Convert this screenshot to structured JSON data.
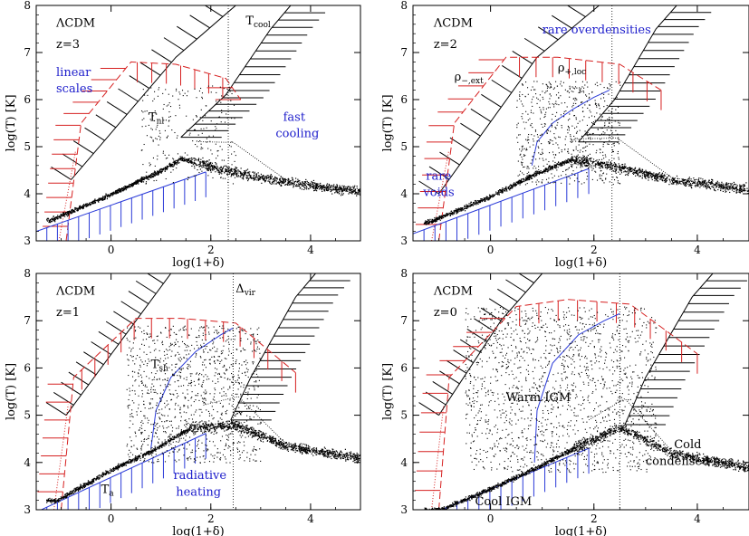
{
  "chart_data": [
    {
      "type": "scatter",
      "xlabel": "log(1+δ)",
      "ylabel": "log(T) [K]",
      "xlim": [
        -1.5,
        5
      ],
      "ylim": [
        3,
        8
      ],
      "xticks": [
        0,
        2,
        4
      ],
      "yticks": [
        3,
        4,
        5,
        6,
        7,
        8
      ],
      "grid": false,
      "annotations": [
        {
          "text": "ΛCDM",
          "x": -1.1,
          "y": 7.55,
          "color": "#000000"
        },
        {
          "text": "z=3",
          "x": -1.1,
          "y": 7.1,
          "color": "#000000"
        },
        {
          "text": "linear",
          "x": -1.1,
          "y": 6.5,
          "color": "#2020cc"
        },
        {
          "text": "scales",
          "x": -1.1,
          "y": 6.15,
          "color": "#2020cc"
        },
        {
          "text": "T_nl",
          "x": 0.75,
          "y": 5.55,
          "color": "#000000"
        },
        {
          "text": "T_cool",
          "x": 2.7,
          "y": 7.6,
          "color": "#000000"
        },
        {
          "text": "fast",
          "x": 3.45,
          "y": 5.55,
          "color": "#2020cc"
        },
        {
          "text": "cooling",
          "x": 3.3,
          "y": 5.2,
          "color": "#2020cc"
        }
      ],
      "vline": 2.35,
      "cloud_pts": [
        [
          -1.2,
          3.45
        ],
        [
          0.0,
          4.0
        ],
        [
          1.0,
          4.5
        ],
        [
          1.4,
          4.75
        ],
        [
          2.5,
          4.45
        ],
        [
          3.5,
          4.25
        ],
        [
          5.0,
          4.05
        ]
      ],
      "extra_scatter": {
        "x_range": [
          0.6,
          2.5
        ],
        "y_range": [
          4.2,
          6.3
        ]
      },
      "heating_line": null,
      "red_curve": [
        [
          -0.9,
          3.0
        ],
        [
          -0.6,
          5.5
        ],
        [
          0.4,
          6.8
        ],
        [
          1.3,
          6.75
        ],
        [
          2.3,
          6.45
        ],
        [
          2.6,
          6.0
        ]
      ],
      "black_upper": [
        [
          -0.8,
          4.3
        ],
        [
          1.3,
          6.9
        ],
        [
          2.5,
          8.0
        ]
      ],
      "black_lower": [
        [
          1.4,
          5.2
        ],
        [
          2.3,
          6.1
        ],
        [
          3.2,
          7.5
        ],
        [
          3.6,
          8.0
        ]
      ],
      "upper_blue": null
    },
    {
      "type": "scatter",
      "xlabel": "log(1+δ)",
      "ylabel": "log(T) [K]",
      "xlim": [
        -1.5,
        5
      ],
      "ylim": [
        3,
        8
      ],
      "xticks": [
        0,
        2,
        4
      ],
      "yticks": [
        3,
        4,
        5,
        6,
        7,
        8
      ],
      "grid": false,
      "annotations": [
        {
          "text": "ΛCDM",
          "x": -1.1,
          "y": 7.55,
          "color": "#000000"
        },
        {
          "text": "z=2",
          "x": -1.1,
          "y": 7.1,
          "color": "#000000"
        },
        {
          "text": "rare overdensities",
          "x": 1.0,
          "y": 7.4,
          "color": "#2020cc"
        },
        {
          "text": "ρ_−,ext",
          "x": -0.7,
          "y": 6.4,
          "color": "#000000"
        },
        {
          "text": "ρ_+,loc",
          "x": 1.3,
          "y": 6.6,
          "color": "#000000"
        },
        {
          "text": "rare",
          "x": -1.25,
          "y": 4.3,
          "color": "#2020cc"
        },
        {
          "text": "voids",
          "x": -1.3,
          "y": 3.95,
          "color": "#2020cc"
        }
      ],
      "vline": 2.35,
      "cloud_pts": [
        [
          -1.2,
          3.4
        ],
        [
          0.0,
          3.95
        ],
        [
          0.9,
          4.45
        ],
        [
          1.6,
          4.75
        ],
        [
          2.5,
          4.55
        ],
        [
          3.5,
          4.3
        ],
        [
          5.0,
          4.1
        ]
      ],
      "extra_scatter": {
        "x_range": [
          0.5,
          2.5
        ],
        "y_range": [
          4.2,
          6.4
        ]
      },
      "heating_line": [
        [
          0.8,
          4.6
        ],
        [
          0.9,
          5.1
        ],
        [
          1.2,
          5.5
        ],
        [
          1.6,
          5.8
        ],
        [
          2.0,
          6.05
        ],
        [
          2.3,
          6.2
        ]
      ],
      "red_curve": [
        [
          -1.0,
          3.0
        ],
        [
          -0.7,
          5.5
        ],
        [
          0.3,
          6.9
        ],
        [
          1.3,
          6.9
        ],
        [
          2.5,
          6.75
        ],
        [
          3.3,
          6.2
        ]
      ],
      "black_upper": [
        [
          -1.0,
          4.0
        ],
        [
          0.9,
          6.9
        ],
        [
          2.1,
          8.0
        ]
      ],
      "black_lower": [
        [
          1.7,
          5.1
        ],
        [
          2.4,
          6.0
        ],
        [
          3.2,
          7.5
        ],
        [
          3.6,
          8.0
        ]
      ],
      "upper_blue": null
    },
    {
      "type": "scatter",
      "xlabel": "log(1+δ)",
      "ylabel": "log(T) [K]",
      "xlim": [
        -1.5,
        5
      ],
      "ylim": [
        3,
        8
      ],
      "xticks": [
        0,
        2,
        4
      ],
      "yticks": [
        3,
        4,
        5,
        6,
        7,
        8
      ],
      "grid": false,
      "annotations": [
        {
          "text": "ΛCDM",
          "x": -1.1,
          "y": 7.55,
          "color": "#000000"
        },
        {
          "text": "z=1",
          "x": -1.1,
          "y": 7.1,
          "color": "#000000"
        },
        {
          "text": "Δ_vir",
          "x": 2.5,
          "y": 7.6,
          "color": "#000000"
        },
        {
          "text": "T_sh",
          "x": 0.8,
          "y": 6.0,
          "color": "#000000"
        },
        {
          "text": "radiative",
          "x": 1.25,
          "y": 3.65,
          "color": "#2020cc"
        },
        {
          "text": "heating",
          "x": 1.3,
          "y": 3.3,
          "color": "#2020cc"
        },
        {
          "text": "T_a",
          "x": -0.2,
          "y": 3.35,
          "color": "#000000"
        }
      ],
      "vline": 2.45,
      "cloud_pts": [
        [
          -1.1,
          3.2
        ],
        [
          0.0,
          3.85
        ],
        [
          0.9,
          4.3
        ],
        [
          1.6,
          4.75
        ],
        [
          2.5,
          4.8
        ],
        [
          3.5,
          4.35
        ],
        [
          5.0,
          4.1
        ]
      ],
      "extra_scatter": {
        "x_range": [
          0.3,
          3.0
        ],
        "y_range": [
          4.0,
          6.9
        ]
      },
      "heating_line": [
        [
          0.8,
          4.3
        ],
        [
          0.9,
          5.1
        ],
        [
          1.2,
          5.8
        ],
        [
          1.7,
          6.35
        ],
        [
          2.2,
          6.7
        ],
        [
          2.45,
          6.85
        ]
      ],
      "red_curve": [
        [
          -1.0,
          3.0
        ],
        [
          -0.75,
          5.8
        ],
        [
          0.5,
          7.05
        ],
        [
          1.4,
          7.05
        ],
        [
          2.5,
          6.95
        ],
        [
          3.7,
          5.9
        ]
      ],
      "black_upper": [
        [
          -0.9,
          5.0
        ],
        [
          0.5,
          7.0
        ],
        [
          1.2,
          8.0
        ]
      ],
      "black_lower": [
        [
          2.4,
          4.9
        ],
        [
          2.8,
          5.8
        ],
        [
          3.7,
          7.5
        ],
        [
          4.1,
          8.0
        ]
      ],
      "upper_blue": null
    },
    {
      "type": "scatter",
      "xlabel": "log(1+δ)",
      "ylabel": "log(T) [K]",
      "xlim": [
        -1.5,
        5
      ],
      "ylim": [
        3,
        8
      ],
      "xticks": [
        0,
        2,
        4
      ],
      "yticks": [
        3,
        4,
        5,
        6,
        7,
        8
      ],
      "grid": false,
      "annotations": [
        {
          "text": "ΛCDM",
          "x": -1.1,
          "y": 7.55,
          "color": "#000000"
        },
        {
          "text": "z=0",
          "x": -1.1,
          "y": 7.1,
          "color": "#000000"
        },
        {
          "text": "Warm IGM",
          "x": 0.3,
          "y": 5.3,
          "color": "#000000"
        },
        {
          "text": "Cool IGM",
          "x": -0.3,
          "y": 3.1,
          "color": "#000000"
        },
        {
          "text": "Cold",
          "x": 3.55,
          "y": 4.3,
          "color": "#000000"
        },
        {
          "text": "condensed gas",
          "x": 3.0,
          "y": 3.95,
          "color": "#000000"
        }
      ],
      "vline": 2.5,
      "cloud_pts": [
        [
          -1.0,
          3.0
        ],
        [
          0.0,
          3.45
        ],
        [
          0.9,
          3.9
        ],
        [
          1.6,
          4.3
        ],
        [
          2.5,
          4.75
        ],
        [
          3.5,
          4.2
        ],
        [
          5.0,
          3.9
        ]
      ],
      "extra_scatter": {
        "x_range": [
          -0.5,
          3.2
        ],
        "y_range": [
          3.8,
          7.3
        ]
      },
      "heating_line": [
        [
          0.85,
          4.0
        ],
        [
          0.9,
          5.1
        ],
        [
          1.2,
          6.1
        ],
        [
          1.7,
          6.7
        ],
        [
          2.2,
          7.0
        ],
        [
          2.5,
          7.15
        ]
      ],
      "red_curve": [
        [
          -1.0,
          3.0
        ],
        [
          -0.8,
          5.8
        ],
        [
          0.5,
          7.3
        ],
        [
          1.5,
          7.45
        ],
        [
          2.7,
          7.35
        ],
        [
          4.0,
          6.3
        ]
      ],
      "black_upper": [
        [
          -1.0,
          5.0
        ],
        [
          0.2,
          7.0
        ],
        [
          1.0,
          8.0
        ]
      ],
      "black_lower": [
        [
          2.6,
          4.8
        ],
        [
          3.0,
          5.8
        ],
        [
          3.9,
          7.5
        ],
        [
          4.3,
          8.0
        ]
      ],
      "upper_blue": null
    }
  ]
}
